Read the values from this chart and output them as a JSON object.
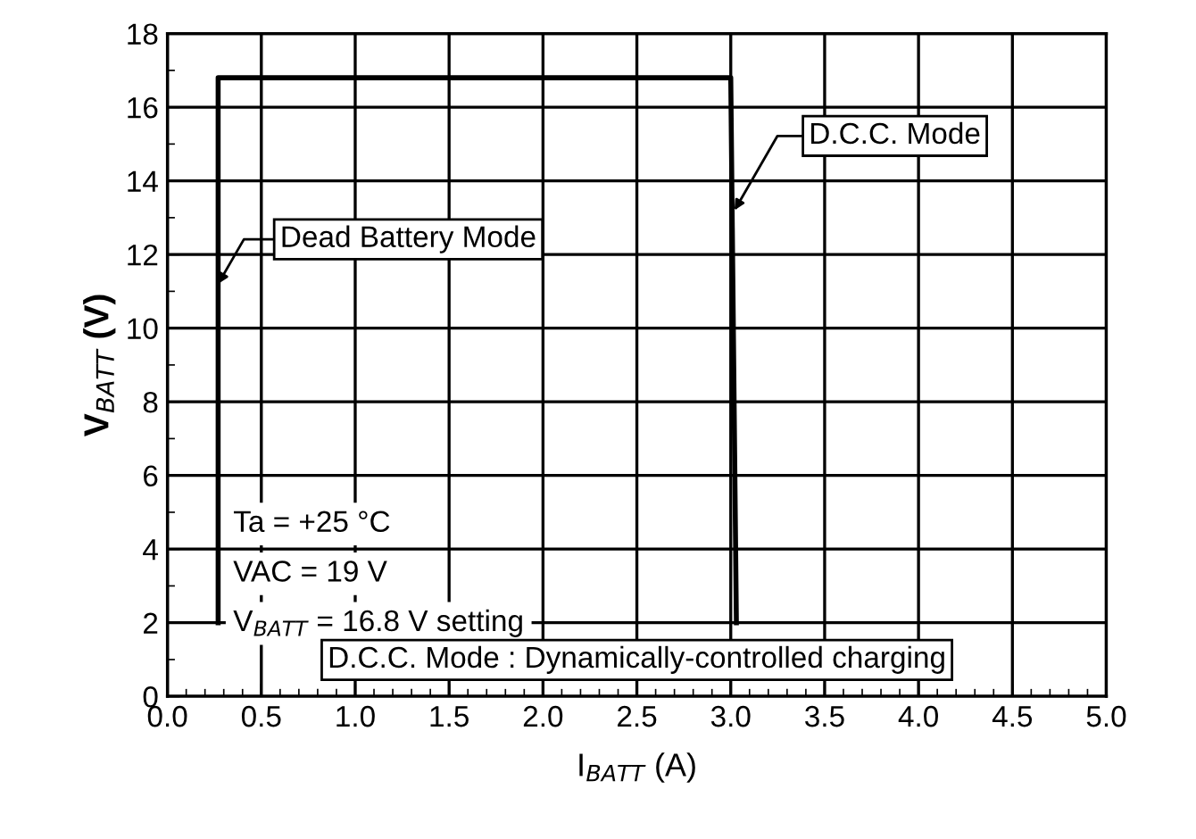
{
  "chart_data": {
    "type": "line",
    "xlabel": "I$_{BATT}$ (A)",
    "ylabel": "V$_{BATT}$ (V)",
    "series": [
      {
        "color": "#000000",
        "x": [
          0.27,
          0.27,
          3.0,
          3.03
        ],
        "values": [
          2,
          16.8,
          16.8,
          2
        ]
      }
    ],
    "xlim": [
      0,
      5
    ],
    "ylim": [
      0,
      18
    ],
    "xticks": [
      {
        "value": 0,
        "label": "0.0"
      },
      {
        "value": 0.5,
        "label": "0.5"
      },
      {
        "value": 1,
        "label": "1.0"
      },
      {
        "value": 1.5,
        "label": "1.5"
      },
      {
        "value": 2,
        "label": "2.0"
      },
      {
        "value": 2.5,
        "label": "2.5"
      },
      {
        "value": 3,
        "label": "3.0"
      },
      {
        "value": 3.5,
        "label": "3.5"
      },
      {
        "value": 4,
        "label": "4.0"
      },
      {
        "value": 4.5,
        "label": "4.5"
      },
      {
        "value": 5,
        "label": "5.0"
      }
    ],
    "yticks": [
      0,
      2,
      4,
      6,
      8,
      10,
      12,
      14,
      16,
      18
    ],
    "grid": true,
    "legend": false,
    "marker": "none",
    "line_style": "solid",
    "annotations": [
      {
        "text": "D.C.C. Mode",
        "x": 3.02,
        "y": 13.2
      },
      {
        "text": "Dead Battery Mode",
        "x": 0.27,
        "y": 11.2
      },
      "Ta = +25 °C",
      "VAC = 19 V",
      "V$_{BATT}$ = 16.8 V setting",
      "D.C.C. Mode : Dynamically-controlled charging"
    ]
  }
}
